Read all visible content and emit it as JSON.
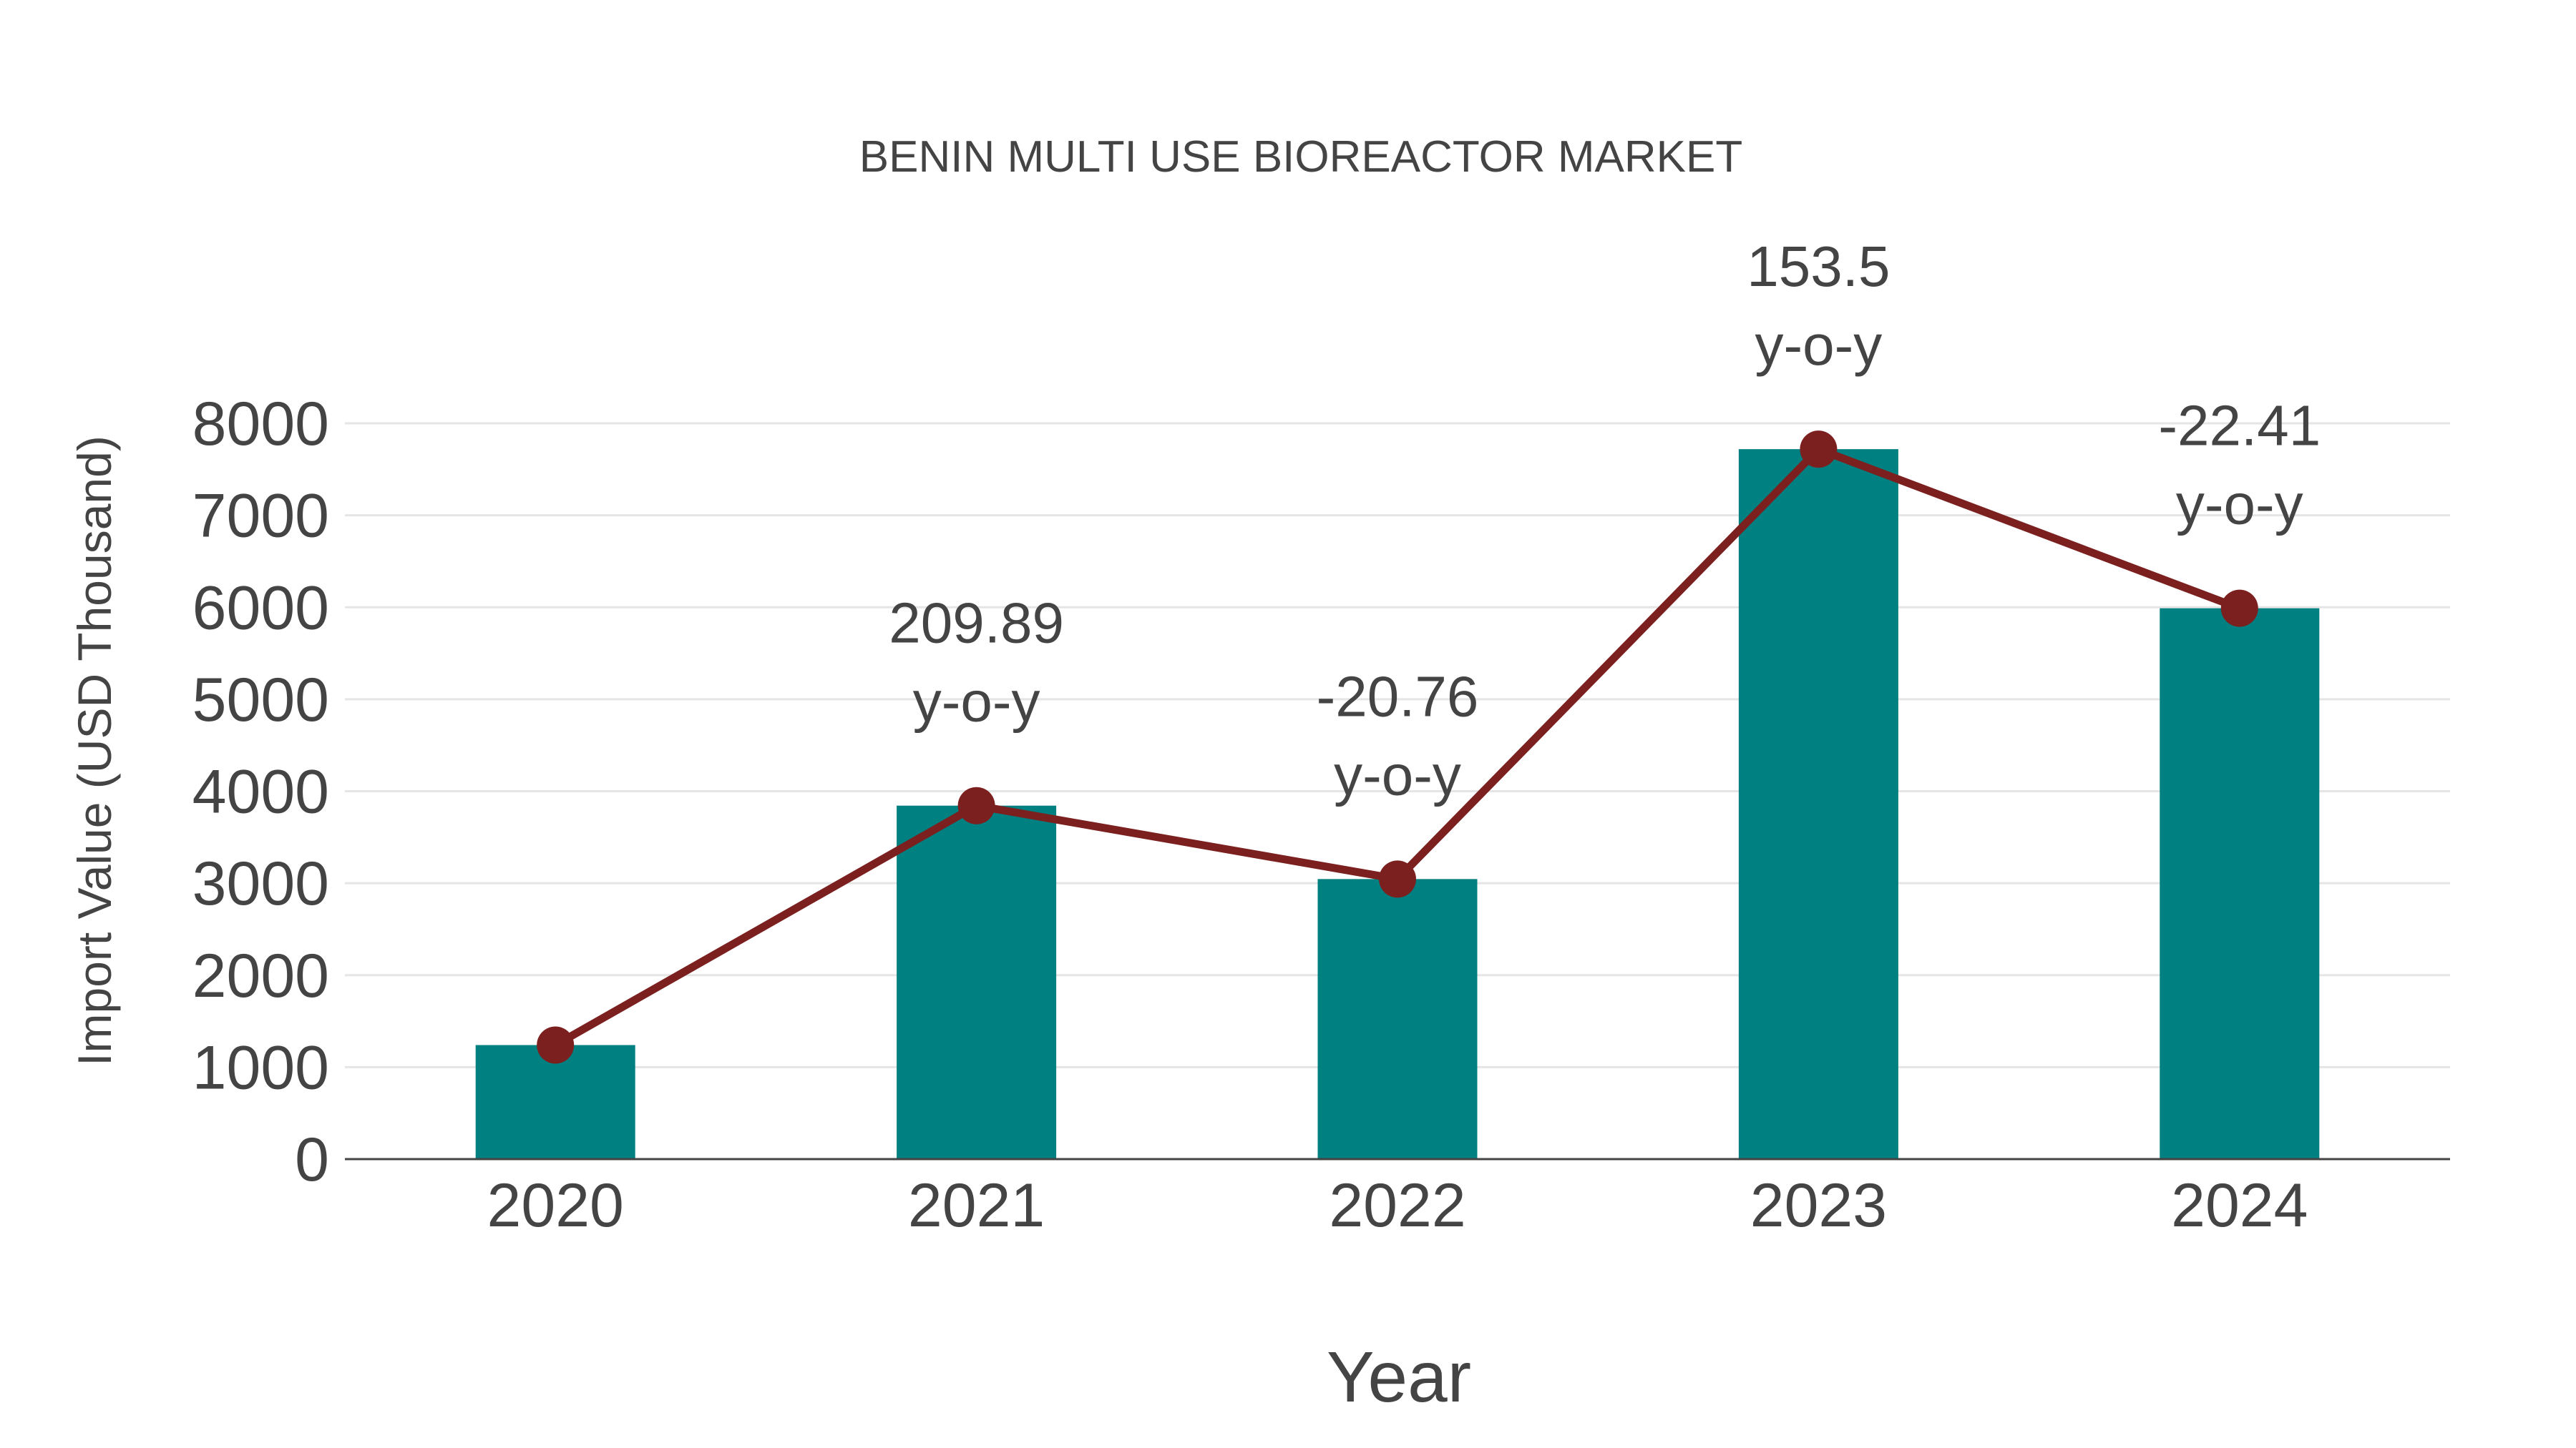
{
  "chart_data": {
    "type": "bar",
    "title": "BENIN MULTI USE BIOREACTOR MARKET",
    "xlabel": "Year",
    "ylabel": "Import Value (USD Thousand)",
    "categories": [
      "2020",
      "2021",
      "2022",
      "2023",
      "2024"
    ],
    "series": [
      {
        "name": "Import Value",
        "type": "bar",
        "color": "#008080",
        "values": [
          1240,
          3843,
          3045,
          7719,
          5989
        ]
      },
      {
        "name": "Trend",
        "type": "line",
        "color": "#7b1f1f",
        "values": [
          1240,
          3843,
          3045,
          7719,
          5989
        ]
      }
    ],
    "annotations": [
      {
        "category": "2021",
        "value": "209.89",
        "suffix": "y-o-y"
      },
      {
        "category": "2022",
        "value": "-20.76",
        "suffix": "y-o-y"
      },
      {
        "category": "2023",
        "value": "153.5",
        "suffix": "y-o-y"
      },
      {
        "category": "2024",
        "value": "-22.41",
        "suffix": "y-o-y"
      }
    ],
    "yticks": [
      "0",
      "1000",
      "2000",
      "3000",
      "4000",
      "5000",
      "6000",
      "7000",
      "8000"
    ],
    "ylim": [
      0,
      8000
    ],
    "grid": true,
    "legend": "none"
  },
  "colors": {
    "bar": "#008080",
    "line": "#7b1f1f",
    "text": "#444444",
    "grid": "#e5e5e5"
  }
}
